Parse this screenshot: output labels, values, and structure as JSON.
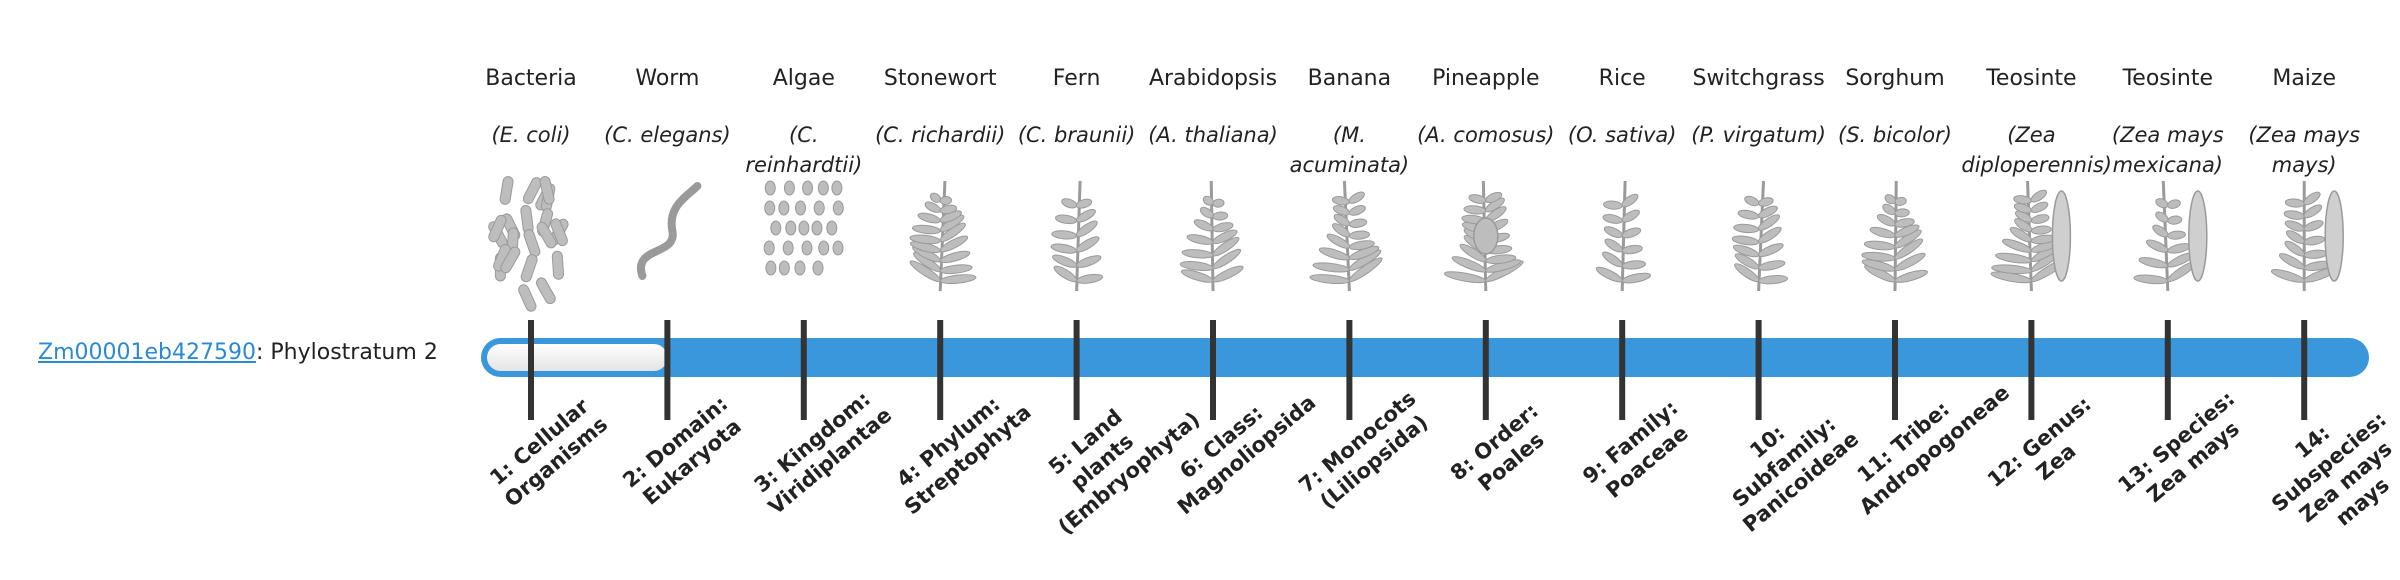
{
  "gene": {
    "id": "Zm00001eb427590",
    "label": ": Phylostratum",
    "stratum": 2
  },
  "organisms": [
    {
      "name": "Bacteria",
      "species": "(E. coli)",
      "rank": "1: Cellular Organisms"
    },
    {
      "name": "Worm",
      "species": "(C. elegans)",
      "rank": "2: Domain: Eukaryota"
    },
    {
      "name": "Algae",
      "species": "(C. reinhardtii)",
      "rank": "3: Kingdom: Viridiplantae"
    },
    {
      "name": "Stonewort",
      "species": "(C. richardii)",
      "rank": "4: Phylum: Streptophyta"
    },
    {
      "name": "Fern",
      "species": "(C. braunii)",
      "rank": "5: Land plants (Embryophyta)"
    },
    {
      "name": "Arabidopsis",
      "species": "(A. thaliana)",
      "rank": "6: Class: Magnoliopsida"
    },
    {
      "name": "Banana",
      "species": "(M. acuminata)",
      "rank": "7: Monocots (Liliopsida)"
    },
    {
      "name": "Pineapple",
      "species": "(A. comosus)",
      "rank": "8: Order: Poales"
    },
    {
      "name": "Rice",
      "species": "(O. sativa)",
      "rank": "9: Family: Poaceae"
    },
    {
      "name": "Switchgrass",
      "species": "(P. virgatum)",
      "rank": "10: Subfamily: Panicoideae"
    },
    {
      "name": "Sorghum",
      "species": "(S. bicolor)",
      "rank": "11: Tribe: Andropogoneae"
    },
    {
      "name": "Teosinte",
      "species": "(Zea diploperennis)",
      "rank": "12: Genus: Zea"
    },
    {
      "name": "Teosinte",
      "species": "(Zea mays mexicana)",
      "rank": "13: Species: Zea mays"
    },
    {
      "name": "Maize",
      "species": "(Zea mays mays)",
      "rank": "14: Subspecies: Zea mays mays"
    }
  ]
}
